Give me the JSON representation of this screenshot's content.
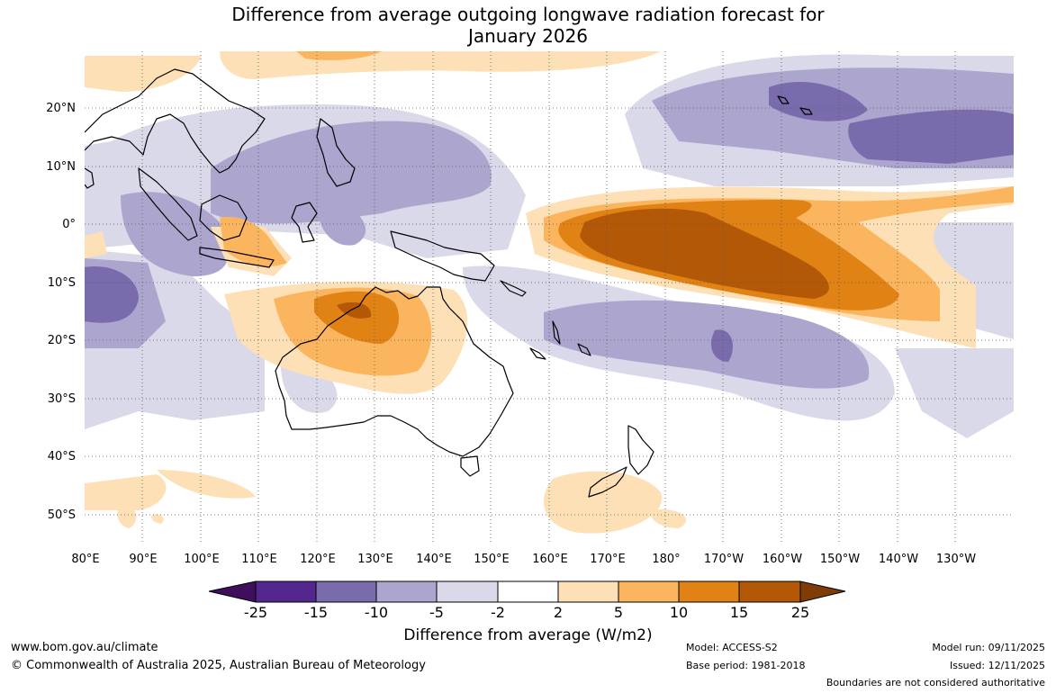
{
  "title": {
    "line1": "Difference from average outgoing longwave radiation forecast for",
    "line2": "January 2026"
  },
  "map": {
    "latitude_labels": [
      "20°N",
      "10°N",
      "0°",
      "10°S",
      "20°S",
      "30°S",
      "40°S",
      "50°S"
    ],
    "longitude_labels": [
      "80°E",
      "90°E",
      "100°E",
      "110°E",
      "120°E",
      "130°E",
      "140°E",
      "150°E",
      "160°E",
      "170°E",
      "180°",
      "170°W",
      "160°W",
      "150°W",
      "140°W",
      "130°W"
    ]
  },
  "colorbar": {
    "title": "Difference from average (W/m2)",
    "labels": [
      "-25",
      "-15",
      "-10",
      "-5",
      "-2",
      "2",
      "5",
      "10",
      "15",
      "25"
    ],
    "colors": [
      "#3f0f5e",
      "#54278f",
      "#7a6bac",
      "#aca6cf",
      "#d9d9ea",
      "#ffffff",
      "#fee0b6",
      "#fbb55f",
      "#e08214",
      "#b35806",
      "#7f3b08"
    ]
  },
  "footer": {
    "url": "www.bom.gov.au/climate",
    "copyright": "© Commonwealth of Australia 2025, Australian Bureau of Meteorology",
    "model": "Model: ACCESS-S2",
    "base_period": "Base period: 1981-2018",
    "model_run": "Model run: 09/11/2025",
    "issued": "Issued: 12/11/2025",
    "disclaimer": "Boundaries are not considered authoritative"
  }
}
